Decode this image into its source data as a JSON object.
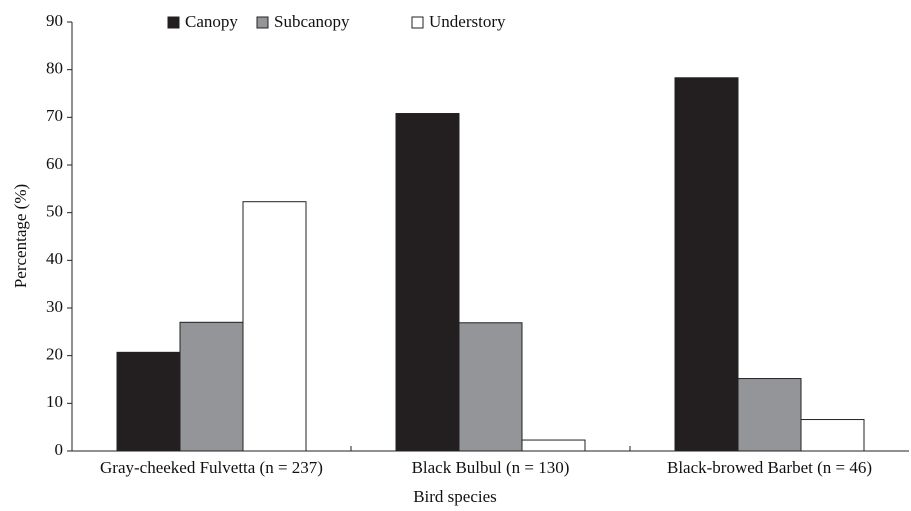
{
  "chart_data": {
    "type": "bar",
    "xlabel": "Bird species",
    "ylabel": "Percentage (%)",
    "categories": [
      "Gray-cheeked Fulvetta (n = 237)",
      "Black Bulbul (n = 130)",
      "Black-browed Barbet (n = 46)"
    ],
    "series": [
      {
        "name": "Canopy",
        "color": "#231f20",
        "values": [
          20.7,
          70.8,
          78.3
        ]
      },
      {
        "name": "Subcanopy",
        "color": "#939598",
        "values": [
          27,
          26.9,
          15.2
        ]
      },
      {
        "name": "Understory",
        "color": "#ffffff",
        "values": [
          52.3,
          2.3,
          6.6
        ]
      }
    ],
    "ylim": [
      0,
      90
    ],
    "yticks": [
      0,
      10,
      20,
      30,
      40,
      50,
      60,
      70,
      80,
      90
    ],
    "grid": false,
    "legend": "top"
  }
}
